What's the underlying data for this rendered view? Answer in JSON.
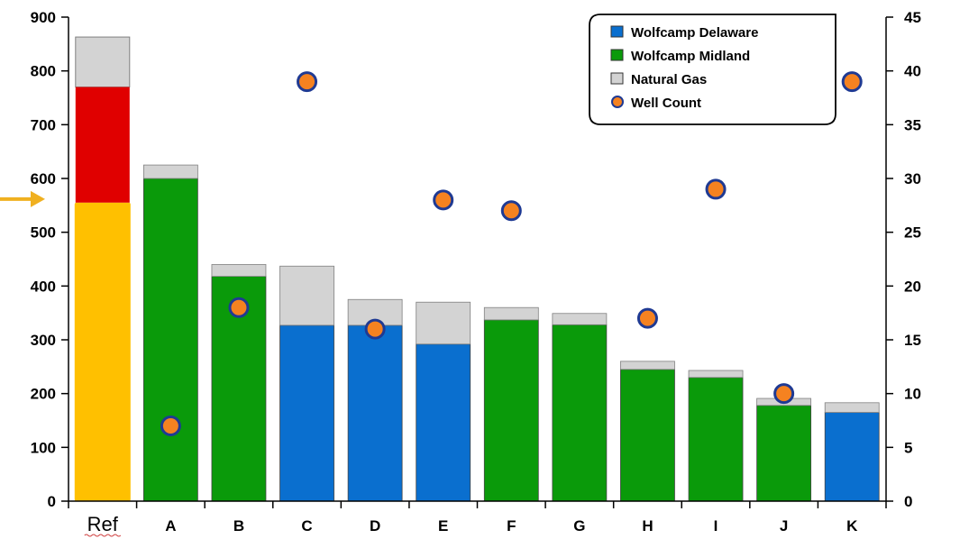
{
  "chart_data": {
    "type": "bar",
    "stacked": true,
    "categories": [
      "Ref",
      "A",
      "B",
      "C",
      "D",
      "E",
      "F",
      "G",
      "H",
      "I",
      "J",
      "K"
    ],
    "series": [
      {
        "name": "Wolfcamp Delaware",
        "color": "#0a6fcf",
        "values": [
          0,
          0,
          0,
          327,
          327,
          292,
          0,
          0,
          0,
          0,
          0,
          165
        ]
      },
      {
        "name": "Wolfcamp Midland",
        "color": "#0a9a0a",
        "values": [
          0,
          600,
          418,
          0,
          0,
          0,
          337,
          328,
          245,
          230,
          178,
          0
        ]
      },
      {
        "name": "Natural Gas",
        "color": "#d3d3d3",
        "values": [
          93,
          25,
          22,
          110,
          48,
          78,
          23,
          21,
          15,
          13,
          13,
          18
        ]
      },
      {
        "name": "Well Count",
        "type": "scatter",
        "axis": "right",
        "color": "#f58220",
        "values": [
          null,
          7,
          18,
          39,
          16,
          28,
          27,
          null,
          17,
          29,
          10,
          39
        ]
      }
    ],
    "ref_bar": {
      "category": "Ref",
      "lower_value": 555,
      "lower_color": "#ffc000",
      "upper_value": 770,
      "upper_color": "#e00000",
      "total": 863
    },
    "marker_arrow_value": 555,
    "y_left": {
      "ticks": [
        "0",
        "100",
        "200",
        "300",
        "400",
        "500",
        "600",
        "700",
        "800",
        "900"
      ],
      "min": 0,
      "max": 900
    },
    "y_right": {
      "ticks": [
        "0",
        "5",
        "10",
        "15",
        "20",
        "25",
        "30",
        "35",
        "40",
        "45"
      ],
      "min": 0,
      "max": 45
    },
    "legend": {
      "placement": "top-right"
    },
    "grid": false
  }
}
